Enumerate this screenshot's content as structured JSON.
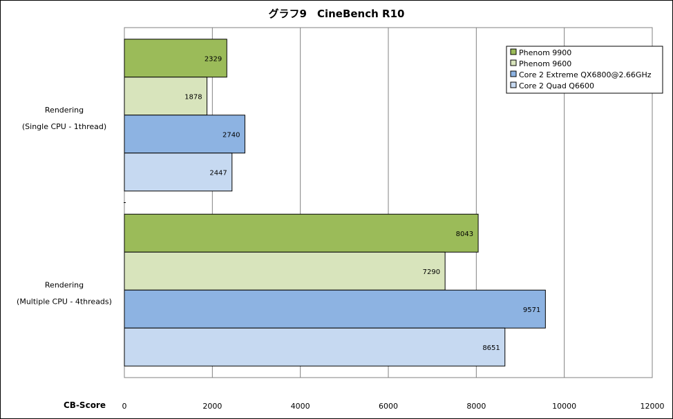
{
  "chart_data": {
    "type": "bar",
    "orientation": "horizontal",
    "title": "グラフ9　CineBench R10",
    "xlabel": "CB-Score",
    "ylabel": "",
    "xlim": [
      0,
      12000
    ],
    "xticks": [
      0,
      2000,
      4000,
      6000,
      8000,
      10000,
      12000
    ],
    "categories": [
      [
        "Rendering",
        "(Single CPU - 1thread)"
      ],
      [
        "Rendering",
        "(Multiple CPU - 4threads)"
      ]
    ],
    "series": [
      {
        "name": "Phenom 9900",
        "color": "#9bbb59",
        "values": [
          2329,
          8043
        ]
      },
      {
        "name": "Phenom 9600",
        "color": "#d8e4bc",
        "values": [
          1878,
          7290
        ]
      },
      {
        "name": "Core 2 Extreme QX6800@2.66GHz",
        "color": "#8db3e2",
        "values": [
          2740,
          9571
        ]
      },
      {
        "name": "Core 2 Quad Q6600",
        "color": "#c6d9f1",
        "values": [
          2447,
          8651
        ]
      }
    ],
    "grid": true,
    "legend": "top-right"
  }
}
